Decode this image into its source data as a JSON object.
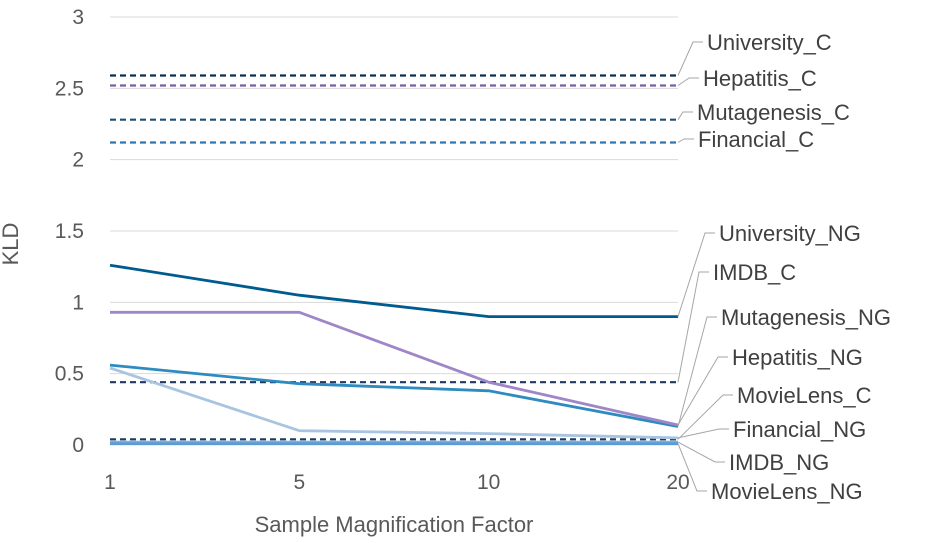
{
  "chart_data": {
    "type": "line",
    "x": [
      1,
      5,
      10,
      20
    ],
    "x_tick_labels": [
      "1",
      "5",
      "10",
      "20"
    ],
    "xlabel": "Sample Magnification Factor",
    "ylabel": "KLD",
    "ylim": [
      0,
      3
    ],
    "y_ticks": [
      0,
      0.5,
      1,
      1.5,
      2,
      2.5,
      3
    ],
    "y_tick_labels": [
      "0",
      "0.5",
      "1",
      "1.5",
      "2",
      "2.5",
      "3"
    ],
    "grid": "horizontal",
    "legend": "direct labels at right end of lines",
    "series": [
      {
        "name": "University_C",
        "values": [
          2.59,
          2.59,
          2.59,
          2.59
        ],
        "color": "#0b2e4f",
        "dash": true
      },
      {
        "name": "Hepatitis_C",
        "values": [
          2.52,
          2.52,
          2.52,
          2.52
        ],
        "color": "#7b5ea8",
        "dash": true
      },
      {
        "name": "Mutagenesis_C",
        "values": [
          2.28,
          2.28,
          2.28,
          2.28
        ],
        "color": "#1f4e79",
        "dash": true
      },
      {
        "name": "Financial_C",
        "values": [
          2.12,
          2.12,
          2.12,
          2.12
        ],
        "color": "#2e75b6",
        "dash": true
      },
      {
        "name": "University_NG",
        "values": [
          1.26,
          1.05,
          0.9,
          0.9
        ],
        "color": "#005b8f",
        "dash": false
      },
      {
        "name": "IMDB_C",
        "values": [
          0.44,
          0.44,
          0.44,
          0.44
        ],
        "color": "#1f3864",
        "dash": true
      },
      {
        "name": "Mutagenesis_NG",
        "values": [
          0.56,
          0.43,
          0.38,
          0.13
        ],
        "color": "#2e8bc0",
        "dash": false
      },
      {
        "name": "Hepatitis_NG",
        "values": [
          0.93,
          0.93,
          0.44,
          0.14
        ],
        "color": "#9e86c8",
        "dash": false
      },
      {
        "name": "MovieLens_C",
        "values": [
          0.04,
          0.04,
          0.04,
          0.04
        ],
        "color": "#1f3864",
        "dash": true
      },
      {
        "name": "Financial_NG",
        "values": [
          0.54,
          0.1,
          0.08,
          0.05
        ],
        "color": "#a9c4e0",
        "dash": false
      },
      {
        "name": "IMDB_NG",
        "values": [
          0.02,
          0.02,
          0.02,
          0.02
        ],
        "color": "#7fb2d9",
        "dash": false
      },
      {
        "name": "MovieLens_NG",
        "values": [
          0.01,
          0.01,
          0.01,
          0.01
        ],
        "color": "#5b9bd5",
        "dash": false
      }
    ]
  }
}
